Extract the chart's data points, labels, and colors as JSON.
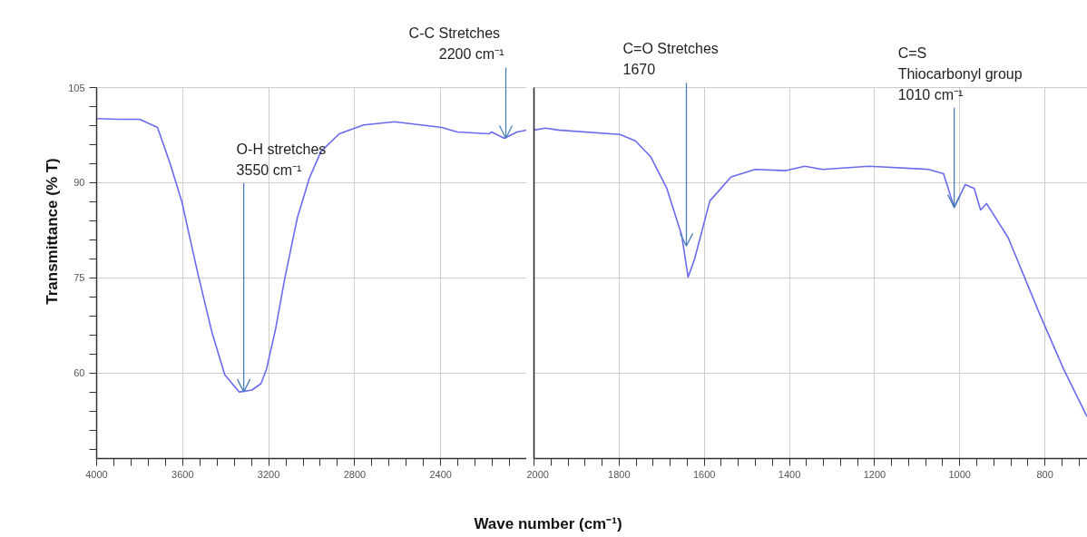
{
  "chart_data": [
    {
      "type": "line",
      "xlabel": "Wave number (cm⁻¹)",
      "ylabel": "Transmittance (% T)",
      "xlim": [
        4000,
        2000
      ],
      "ylim": [
        46.5,
        105
      ],
      "xticks": [
        4000,
        {
          "value": 3920,
          "label": null
        },
        {
          "value": 3840,
          "label": null
        },
        {
          "value": 3760,
          "label": null
        },
        {
          "value": 3680,
          "label": null
        },
        3600,
        {
          "value": 3520,
          "label": null
        },
        {
          "value": 3440,
          "label": null
        },
        {
          "value": 3360,
          "label": null
        },
        {
          "value": 3280,
          "label": null
        },
        3200,
        {
          "value": 3120,
          "label": null
        },
        {
          "value": 3040,
          "label": null
        },
        {
          "value": 2960,
          "label": null
        },
        {
          "value": 2880,
          "label": null
        },
        2800,
        {
          "value": 2720,
          "label": null
        },
        {
          "value": 2640,
          "label": null
        },
        {
          "value": 2560,
          "label": null
        },
        {
          "value": 2480,
          "label": null
        },
        2400,
        {
          "value": 2320,
          "label": null
        },
        {
          "value": 2240,
          "label": null
        },
        {
          "value": 2160,
          "label": null
        },
        {
          "value": 2080,
          "label": null
        }
      ],
      "yticks": [
        {
          "value": 48,
          "label": null
        },
        {
          "value": 51,
          "label": null
        },
        {
          "value": 54,
          "label": null
        },
        {
          "value": 57,
          "label": null
        },
        60,
        {
          "value": 63,
          "label": null
        },
        {
          "value": 66,
          "label": null
        },
        {
          "value": 69,
          "label": null
        },
        {
          "value": 72,
          "label": null
        },
        75,
        {
          "value": 78,
          "label": null
        },
        {
          "value": 81,
          "label": null
        },
        {
          "value": 84,
          "label": null
        },
        {
          "value": 87,
          "label": null
        },
        90,
        {
          "value": 93,
          "label": null
        },
        {
          "value": 96,
          "label": null
        },
        {
          "value": 99,
          "label": null
        },
        {
          "value": 102,
          "label": null
        },
        105
      ],
      "grid": true,
      "series": [
        {
          "color": "#6a6af0",
          "x": [
            4000,
            3900,
            3800,
            3717,
            3658,
            3603,
            3531,
            3463,
            3404,
            3337,
            3278,
            3236,
            3210,
            3168,
            3125,
            3067,
            3012,
            2957,
            2872,
            2758,
            2615,
            2395,
            2323,
            2175,
            2163,
            2104,
            2045,
            2000
          ],
          "values": [
            100.1,
            100.0,
            100.0,
            98.7,
            93.0,
            86.9,
            75.9,
            66.3,
            59.7,
            57.0,
            57.3,
            58.3,
            60.6,
            66.9,
            74.9,
            84.4,
            90.6,
            94.9,
            97.7,
            99.1,
            99.6,
            98.7,
            98.0,
            97.7,
            98.0,
            97.0,
            98.0,
            98.3
          ]
        }
      ],
      "annotations": [
        {
          "text": "O-H stretches\n3550 cm⁻¹",
          "x": 3316,
          "y": 57
        },
        {
          "text": "C-C  Stretches\n2200 cm⁻¹",
          "x": 2097,
          "y": 97
        }
      ]
    },
    {
      "type": "line",
      "tick_labels": "x",
      "xlim": [
        2000,
        700
      ],
      "ylim": [
        46.5,
        105
      ],
      "xticks": [
        2000,
        {
          "value": 1960,
          "label": null
        },
        {
          "value": 1920,
          "label": null
        },
        {
          "value": 1880,
          "label": null
        },
        {
          "value": 1840,
          "label": null
        },
        1800,
        {
          "value": 1760,
          "label": null
        },
        {
          "value": 1720,
          "label": null
        },
        {
          "value": 1680,
          "label": null
        },
        {
          "value": 1640,
          "label": null
        },
        1600,
        {
          "value": 1560,
          "label": null
        },
        {
          "value": 1520,
          "label": null
        },
        {
          "value": 1480,
          "label": null
        },
        {
          "value": 1440,
          "label": null
        },
        1400,
        {
          "value": 1360,
          "label": null
        },
        {
          "value": 1320,
          "label": null
        },
        {
          "value": 1280,
          "label": null
        },
        {
          "value": 1240,
          "label": null
        },
        1200,
        {
          "value": 1160,
          "label": null
        },
        {
          "value": 1120,
          "label": null
        },
        {
          "value": 1080,
          "label": null
        },
        {
          "value": 1040,
          "label": null
        },
        1000,
        {
          "value": 960,
          "label": null
        },
        {
          "value": 920,
          "label": null
        },
        {
          "value": 880,
          "label": null
        },
        {
          "value": 840,
          "label": null
        },
        800,
        {
          "value": 760,
          "label": null
        },
        {
          "value": 720,
          "label": null
        }
      ],
      "yticks": [
        60,
        75,
        90,
        105
      ],
      "grid": true,
      "series": [
        {
          "color": "#6a6af0",
          "x": [
            2000,
            1973,
            1943,
            1798,
            1762,
            1726,
            1688,
            1653,
            1638,
            1623,
            1587,
            1537,
            1480,
            1408,
            1364,
            1322,
            1213,
            1074,
            1038,
            1013,
            987,
            966,
            951,
            937,
            886,
            813,
            756,
            701
          ],
          "values": [
            98.3,
            98.6,
            98.3,
            97.6,
            96.6,
            94.1,
            89.1,
            81.7,
            75.1,
            77.9,
            87.1,
            90.9,
            92.1,
            91.9,
            92.6,
            92.1,
            92.6,
            92.1,
            91.4,
            86.1,
            89.7,
            89.1,
            85.7,
            86.7,
            81.3,
            69.4,
            60.6,
            53.1
          ]
        }
      ],
      "annotations": [
        {
          "text": "C=O  Stretches\n1670",
          "x": 1642,
          "y": 80
        },
        {
          "text": "C=S\nThiocarbonyl group\n1010  cm⁻¹",
          "x": 1013,
          "y": 86.1
        }
      ]
    }
  ]
}
